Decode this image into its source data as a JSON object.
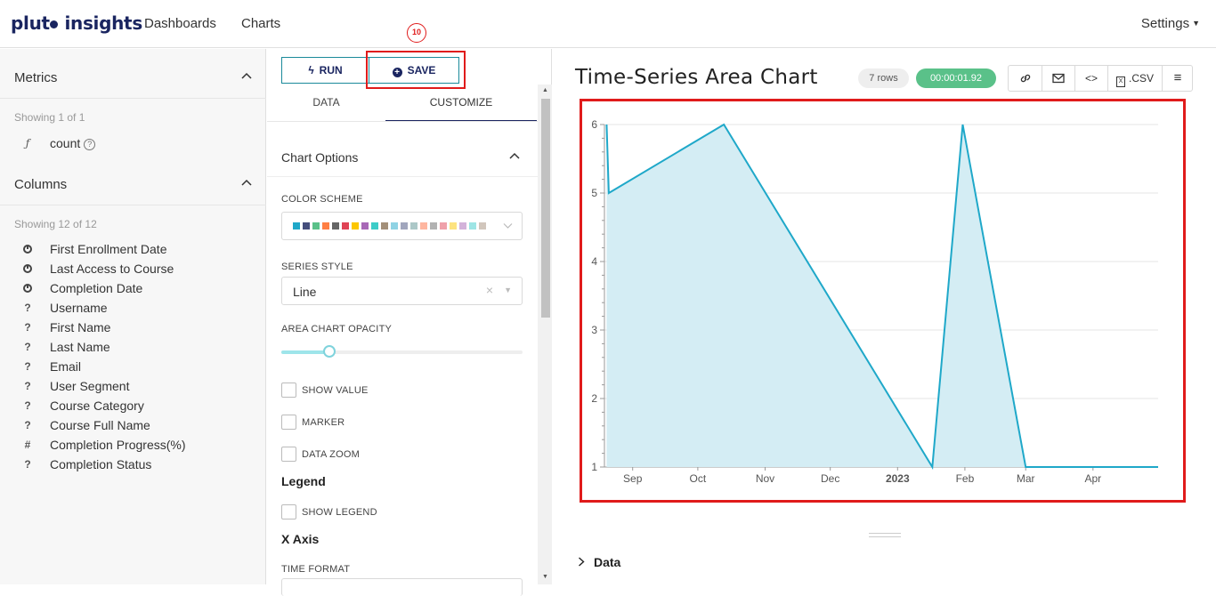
{
  "header": {
    "logo_pre": "plut",
    "logo_post": " insights",
    "nav": [
      "Dashboards",
      "Charts"
    ],
    "settings": "Settings"
  },
  "sidebar": {
    "metrics_title": "Metrics",
    "metrics_showing": "Showing 1 of 1",
    "metrics": [
      {
        "icon": "function-icon",
        "glyph": "ƒ",
        "label": "count",
        "help": "?"
      }
    ],
    "columns_title": "Columns",
    "columns_showing": "Showing 12 of 12",
    "columns": [
      {
        "icon": "clock-icon",
        "label": "First Enrollment Date"
      },
      {
        "icon": "clock-icon",
        "label": "Last Access to Course"
      },
      {
        "icon": "clock-icon",
        "label": "Completion Date"
      },
      {
        "icon": "question-icon",
        "glyph": "?",
        "label": "Username"
      },
      {
        "icon": "question-icon",
        "glyph": "?",
        "label": "First Name"
      },
      {
        "icon": "question-icon",
        "glyph": "?",
        "label": "Last Name"
      },
      {
        "icon": "question-icon",
        "glyph": "?",
        "label": "Email"
      },
      {
        "icon": "question-icon",
        "glyph": "?",
        "label": "User Segment"
      },
      {
        "icon": "question-icon",
        "glyph": "?",
        "label": "Course Category"
      },
      {
        "icon": "question-icon",
        "glyph": "?",
        "label": "Course Full Name"
      },
      {
        "icon": "hash-icon",
        "glyph": "#",
        "label": "Completion Progress(%)"
      },
      {
        "icon": "question-icon",
        "glyph": "?",
        "label": "Completion Status"
      }
    ]
  },
  "editor": {
    "run_label": "RUN",
    "save_label": "SAVE",
    "step_badge": "10",
    "tabs": [
      "DATA",
      "CUSTOMIZE"
    ],
    "active_tab": "CUSTOMIZE",
    "chart_options_title": "Chart Options",
    "color_scheme_label": "COLOR SCHEME",
    "color_scheme_swatches": [
      "#1fa8c9",
      "#454e7c",
      "#5ac189",
      "#ff7f44",
      "#666666",
      "#e04355",
      "#fcc700",
      "#a868b7",
      "#3cccc8",
      "#a38f79",
      "#8fd3e4",
      "#a1a6bd",
      "#acc8c8",
      "#feb6a0",
      "#b2b2b2",
      "#efa1aa",
      "#fde380",
      "#d3b3da",
      "#9ee5e5",
      "#d1c6bc"
    ],
    "series_style_label": "SERIES STYLE",
    "series_style_value": "Line",
    "opacity_label": "AREA CHART OPACITY",
    "opacity_value": 0.2,
    "show_value_label": "SHOW VALUE",
    "marker_label": "MARKER",
    "data_zoom_label": "DATA ZOOM",
    "legend_title": "Legend",
    "show_legend_label": "SHOW LEGEND",
    "x_axis_title": "X Axis",
    "time_format_label": "TIME FORMAT"
  },
  "chart_panel": {
    "title": "Time-Series Area Chart",
    "rows_badge": "7 rows",
    "timer_badge": "00:00:01.92",
    "toolbar": [
      {
        "icon": "link-icon"
      },
      {
        "icon": "mail-icon"
      },
      {
        "icon": "code-icon"
      },
      {
        "icon": "csv-icon",
        "label": ".CSV"
      },
      {
        "icon": "menu-icon"
      }
    ],
    "data_section_label": "Data",
    "colors": {
      "line": "#1fa8c9",
      "fill": "#d4edf4",
      "timer": "#5ac189"
    }
  },
  "chart_data": {
    "type": "area",
    "title": "",
    "xlabel": "",
    "ylabel": "",
    "ylim": [
      1,
      6
    ],
    "y_ticks": [
      "1",
      "2",
      "3",
      "4",
      "5",
      "6"
    ],
    "x_ticks": [
      "Sep",
      "Oct",
      "Nov",
      "Dec",
      "2023",
      "Feb",
      "Mar",
      "Apr"
    ],
    "series": [
      {
        "x": [
          "2022-08-20",
          "2022-08-21",
          "2022-10-13",
          "2023-01-17",
          "2023-01-31",
          "2023-03-01",
          "2023-05-01"
        ],
        "values": [
          6,
          5,
          6,
          1,
          6,
          1,
          1
        ]
      }
    ],
    "grid": true,
    "legend": "none"
  }
}
